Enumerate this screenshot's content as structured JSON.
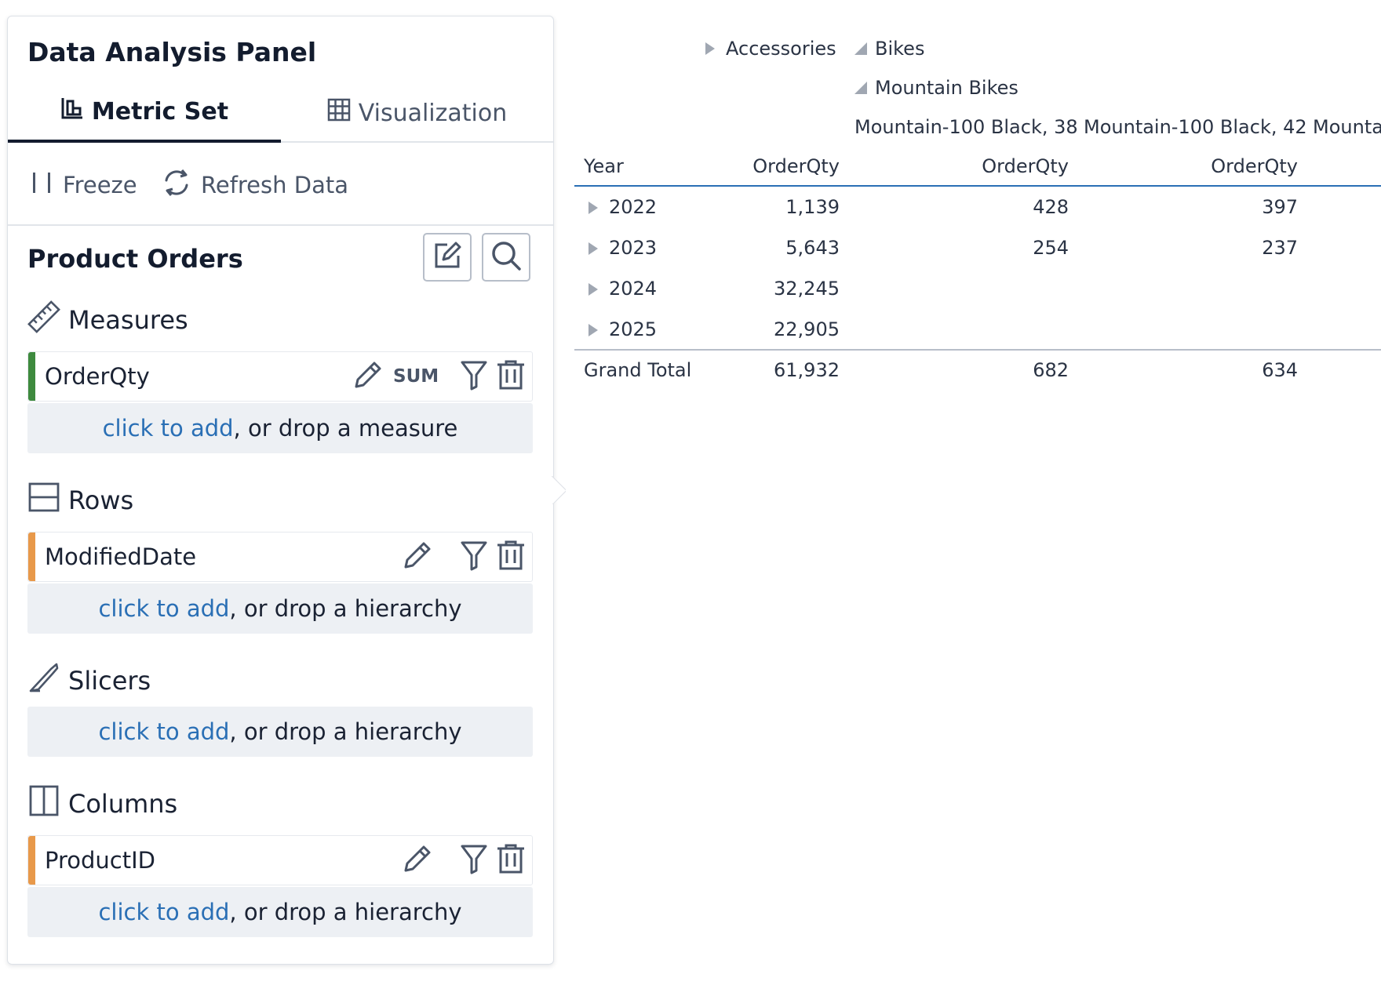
{
  "panel": {
    "title": "Data Analysis Panel",
    "tabs": [
      {
        "label": "Metric Set",
        "icon": "chart-building-icon",
        "active": true
      },
      {
        "label": "Visualization",
        "icon": "grid-icon",
        "active": false
      }
    ],
    "toolbar": {
      "freeze_label": "Freeze",
      "refresh_label": "Refresh Data"
    },
    "section_title": "Product Orders",
    "measures": {
      "label": "Measures",
      "fields": [
        {
          "name": "OrderQty",
          "aggregation": "SUM",
          "color": "#3e8a3e"
        }
      ],
      "drop": {
        "link": "click to add",
        "rest": ", or drop a measure"
      }
    },
    "rows": {
      "label": "Rows",
      "fields": [
        {
          "name": "ModifiedDate",
          "color": "#e8994a"
        }
      ],
      "drop": {
        "link": "click to add",
        "rest": ", or drop a hierarchy"
      }
    },
    "slicers": {
      "label": "Slicers",
      "drop": {
        "link": "click to add",
        "rest": ", or drop a hierarchy"
      }
    },
    "columns": {
      "label": "Columns",
      "fields": [
        {
          "name": "ProductID",
          "color": "#e8994a"
        }
      ],
      "drop": {
        "link": "click to add",
        "rest": ", or drop a hierarchy"
      }
    }
  },
  "pivot": {
    "categories": {
      "accessories": "Accessories",
      "bikes": "Bikes",
      "mountain_bikes": "Mountain Bikes"
    },
    "products": [
      "Mountain-100 Black, 38",
      "Mountain-100 Black, 42",
      "Mounta"
    ],
    "row_header": "Year",
    "measure_headers": [
      "OrderQty",
      "OrderQty",
      "OrderQty"
    ],
    "rows": [
      {
        "year": "2022",
        "values": [
          "1,139",
          "428",
          "397"
        ]
      },
      {
        "year": "2023",
        "values": [
          "5,643",
          "254",
          "237"
        ]
      },
      {
        "year": "2024",
        "values": [
          "32,245",
          "",
          ""
        ]
      },
      {
        "year": "2025",
        "values": [
          "22,905",
          "",
          ""
        ]
      }
    ],
    "total": {
      "label": "Grand Total",
      "values": [
        "61,932",
        "682",
        "634"
      ]
    }
  }
}
